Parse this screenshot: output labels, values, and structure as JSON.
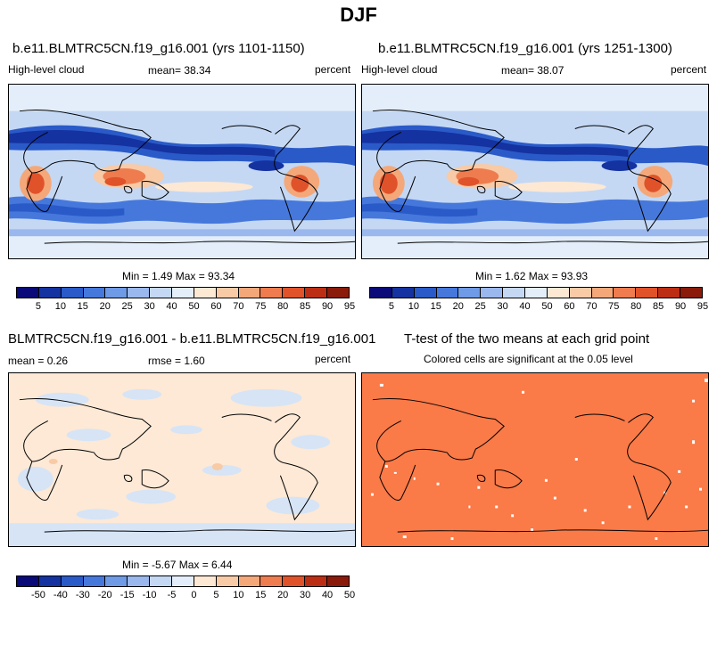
{
  "title": "DJF",
  "panels": {
    "p1": {
      "title": "b.e11.BLMTRC5CN.f19_g16.001 (yrs 1101-1150)",
      "left_label": "High-level cloud",
      "mean_text": "mean=  38.34",
      "right_label": "percent",
      "minmax": "Min =   1.49 Max =  93.34"
    },
    "p2": {
      "title": "b.e11.BLMTRC5CN.f19_g16.001 (yrs 1251-1300)",
      "left_label": "High-level cloud",
      "mean_text": "mean=  38.07",
      "right_label": "percent",
      "minmax": "Min =   1.62 Max =  93.93"
    },
    "p3": {
      "title": "BLMTRC5CN.f19_g16.001 - b.e11.BLMTRC5CN.f19_g16.001",
      "mean_text": "mean =   0.26",
      "rmse_text": "rmse =   1.60",
      "right_label": "percent",
      "minmax": "Min =  -5.67 Max =   6.44"
    },
    "p4": {
      "title": "T-test of the two means at each grid point",
      "subtitle": "Colored cells are significant at the 0.05 level"
    }
  },
  "colorbars": {
    "abs": {
      "colors": [
        "#0a0a78",
        "#1432a0",
        "#2a5ac8",
        "#4678dc",
        "#6e9ae6",
        "#9ab8ee",
        "#c4d8f4",
        "#e4eefa",
        "#fde8d4",
        "#f8caa6",
        "#f4a87a",
        "#ee7c4e",
        "#e0522a",
        "#bc2e14",
        "#8a1a0a"
      ],
      "labels": [
        "5",
        "10",
        "15",
        "20",
        "25",
        "30",
        "40",
        "50",
        "60",
        "70",
        "75",
        "80",
        "85",
        "90",
        "95"
      ]
    },
    "diff": {
      "colors": [
        "#0a0a78",
        "#1432a0",
        "#2a5ac8",
        "#4678dc",
        "#6e9ae6",
        "#9ab8ee",
        "#c4d8f4",
        "#e4eefa",
        "#fde8d4",
        "#f8caa6",
        "#f4a87a",
        "#ee7c4e",
        "#e0522a",
        "#bc2e14",
        "#8a1a0a"
      ],
      "labels": [
        "-50",
        "-40",
        "-30",
        "-20",
        "-15",
        "-10",
        "-5",
        "0",
        "5",
        "10",
        "15",
        "20",
        "30",
        "40",
        "50"
      ]
    }
  },
  "colors": {
    "ttest_fill": "#fa7a48",
    "diff_base": "#fde9d6",
    "diff_neg": "#d6e4f6"
  }
}
